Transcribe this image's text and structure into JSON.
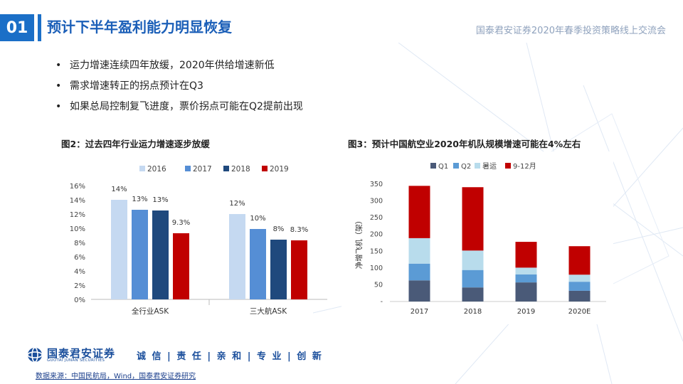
{
  "header": {
    "number": "01",
    "title": "预计下半年盈利能力明显恢复",
    "event": "国泰君安证券2020年春季投资策略线上交流会"
  },
  "bullets": [
    "运力增速连续四年放缓，2020年供给增速新低",
    "需求增速转正的拐点预计在Q3",
    "如果总局控制复飞进度，票价拐点可能在Q2提前出现"
  ],
  "figures": {
    "fig2_title": "图2：过去四年行业运力增速逐步放缓",
    "fig3_title": "图3：预计中国航空业2020年机队规模增速可能在4%左右"
  },
  "colors": {
    "brand_blue": "#1b6fc7",
    "series_2016": "#c5d9f1",
    "series_2017": "#558ed5",
    "series_2018": "#1f497d",
    "series_2019": "#c00000",
    "q1": "#4a5a78",
    "q2": "#5b9bd5",
    "summer": "#b8dcec",
    "sep_dec": "#c00000"
  },
  "chart_data": [
    {
      "type": "bar",
      "categories": [
        "全行业ASK",
        "三大航ASK"
      ],
      "series": [
        {
          "name": "2016",
          "values": [
            14,
            12
          ],
          "labels": [
            "14%",
            "12%"
          ]
        },
        {
          "name": "2017",
          "values": [
            12.6,
            9.9
          ],
          "labels": [
            "13%",
            "10%"
          ]
        },
        {
          "name": "2018",
          "values": [
            12.5,
            8.4
          ],
          "labels": [
            "13%",
            "8%"
          ]
        },
        {
          "name": "2019",
          "values": [
            9.3,
            8.3
          ],
          "labels": [
            "9.3%",
            "8.3%"
          ]
        }
      ],
      "yticks": [
        "0%",
        "2%",
        "4%",
        "6%",
        "8%",
        "10%",
        "12%",
        "14%",
        "16%"
      ],
      "ylim": [
        0,
        16
      ],
      "legend": "top",
      "xlabel": "",
      "ylabel": ""
    },
    {
      "type": "bar",
      "stacked": true,
      "categories": [
        "2017",
        "2018",
        "2019",
        "2020E"
      ],
      "series": [
        {
          "name": "Q1",
          "values": [
            63,
            42,
            57,
            32
          ]
        },
        {
          "name": "Q2",
          "values": [
            50,
            52,
            24,
            27
          ]
        },
        {
          "name": "暑运",
          "values": [
            76,
            58,
            20,
            21
          ]
        },
        {
          "name": "9-12月",
          "values": [
            156,
            189,
            77,
            85
          ]
        }
      ],
      "yticks": [
        "-",
        "50",
        "100",
        "150",
        "200",
        "250",
        "300",
        "350"
      ],
      "ylim": [
        0,
        350
      ],
      "ylabel": "净增飞机（架）",
      "legend": "top",
      "xlabel": ""
    }
  ],
  "footer": {
    "logo_cn": "国泰君安证券",
    "logo_en": "GUOTAI JUNAN SECURITIES",
    "slogan": "诚 信 | 责 任 | 亲 和 | 专 业 | 创 新",
    "source": "数据来源：中国民航局，Wind，国泰君安证券研究"
  }
}
